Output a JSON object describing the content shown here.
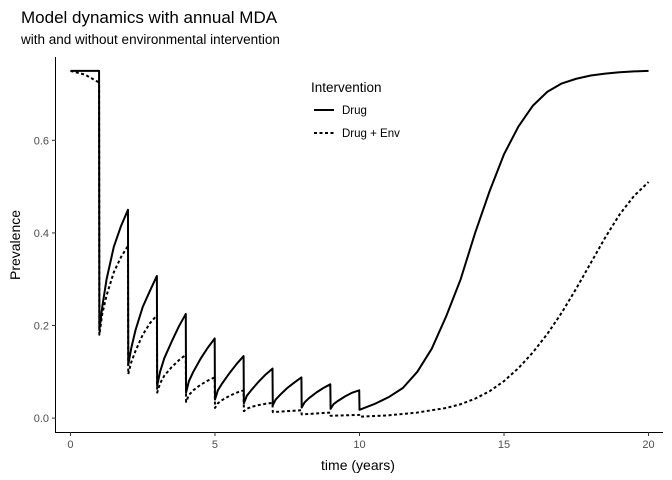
{
  "chart_data": {
    "type": "line",
    "title": "Model dynamics with annual MDA",
    "subtitle": "with and without environmental intervention",
    "xlabel": "time (years)",
    "ylabel": "Prevalence",
    "xlim": [
      -0.5,
      20.5
    ],
    "ylim": [
      -0.03,
      0.78
    ],
    "x_ticks": [
      0,
      5,
      10,
      15,
      20
    ],
    "y_ticks": [
      0.0,
      0.2,
      0.4,
      0.6
    ],
    "grid": false,
    "legend": {
      "title": "Intervention",
      "placement": "top-right-inside"
    },
    "series": [
      {
        "name": "Drug",
        "linestyle": "solid",
        "color": "#000000",
        "x": [
          0,
          0.99,
          1.0,
          1.1,
          1.25,
          1.5,
          1.75,
          1.99,
          2.0,
          2.1,
          2.25,
          2.5,
          2.75,
          2.99,
          3.0,
          3.1,
          3.25,
          3.5,
          3.75,
          3.99,
          4.0,
          4.1,
          4.25,
          4.5,
          4.75,
          4.99,
          5.0,
          5.1,
          5.25,
          5.5,
          5.75,
          5.99,
          6.0,
          6.1,
          6.25,
          6.5,
          6.75,
          6.99,
          7.0,
          7.1,
          7.25,
          7.5,
          7.75,
          7.99,
          8.0,
          8.1,
          8.25,
          8.5,
          8.75,
          8.99,
          9.0,
          9.1,
          9.25,
          9.5,
          9.75,
          9.99,
          10.0,
          10.5,
          11,
          11.5,
          12,
          12.5,
          13,
          13.5,
          14,
          14.5,
          15,
          15.5,
          16,
          16.5,
          17,
          17.5,
          18,
          18.5,
          19,
          19.5,
          20
        ],
        "y": [
          0.75,
          0.75,
          0.19,
          0.24,
          0.3,
          0.37,
          0.415,
          0.45,
          0.115,
          0.15,
          0.19,
          0.24,
          0.275,
          0.307,
          0.07,
          0.1,
          0.13,
          0.165,
          0.198,
          0.225,
          0.055,
          0.08,
          0.1,
          0.128,
          0.152,
          0.172,
          0.04,
          0.06,
          0.075,
          0.097,
          0.117,
          0.134,
          0.032,
          0.048,
          0.06,
          0.078,
          0.094,
          0.107,
          0.028,
          0.04,
          0.05,
          0.065,
          0.077,
          0.088,
          0.023,
          0.034,
          0.043,
          0.055,
          0.065,
          0.073,
          0.02,
          0.03,
          0.037,
          0.047,
          0.055,
          0.06,
          0.018,
          0.03,
          0.045,
          0.065,
          0.1,
          0.15,
          0.22,
          0.3,
          0.4,
          0.49,
          0.57,
          0.63,
          0.675,
          0.705,
          0.723,
          0.733,
          0.74,
          0.744,
          0.747,
          0.749,
          0.75
        ]
      },
      {
        "name": "Drug + Env",
        "linestyle": "dashed",
        "color": "#000000",
        "x": [
          0,
          0.5,
          0.99,
          1.0,
          1.1,
          1.25,
          1.5,
          1.75,
          1.99,
          2.0,
          2.1,
          2.25,
          2.5,
          2.75,
          2.99,
          3.0,
          3.1,
          3.25,
          3.5,
          3.75,
          3.99,
          4.0,
          4.1,
          4.25,
          4.5,
          4.75,
          4.99,
          5.0,
          5.1,
          5.25,
          5.5,
          5.75,
          5.99,
          6.0,
          6.1,
          6.25,
          6.5,
          6.75,
          6.99,
          7.0,
          7.5,
          7.99,
          8.0,
          8.5,
          8.99,
          9.0,
          9.5,
          9.99,
          10.0,
          11,
          12,
          13,
          13.5,
          14,
          14.5,
          15,
          15.5,
          16,
          16.5,
          17,
          17.5,
          18,
          18.5,
          19,
          19.5,
          20
        ],
        "y": [
          0.75,
          0.742,
          0.725,
          0.18,
          0.225,
          0.265,
          0.315,
          0.348,
          0.372,
          0.095,
          0.12,
          0.145,
          0.18,
          0.205,
          0.222,
          0.055,
          0.075,
          0.092,
          0.11,
          0.125,
          0.137,
          0.035,
          0.05,
          0.06,
          0.072,
          0.081,
          0.088,
          0.022,
          0.032,
          0.039,
          0.048,
          0.055,
          0.06,
          0.015,
          0.02,
          0.024,
          0.028,
          0.031,
          0.033,
          0.013,
          0.015,
          0.017,
          0.008,
          0.01,
          0.012,
          0.005,
          0.006,
          0.007,
          0.003,
          0.006,
          0.012,
          0.022,
          0.03,
          0.042,
          0.058,
          0.08,
          0.108,
          0.142,
          0.182,
          0.228,
          0.28,
          0.335,
          0.39,
          0.44,
          0.48,
          0.51
        ]
      }
    ]
  }
}
